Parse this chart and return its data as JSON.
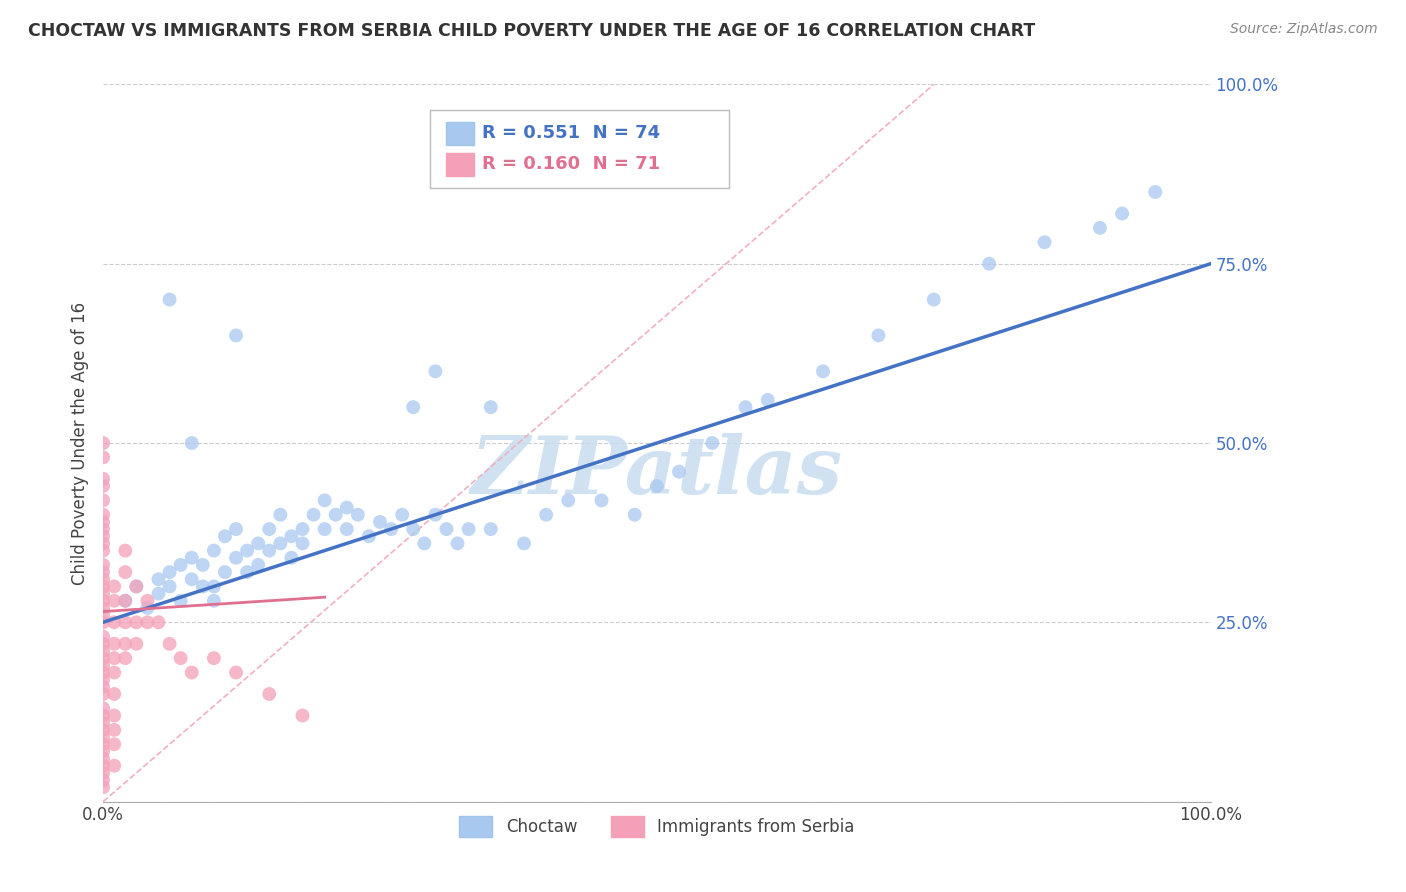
{
  "title": "CHOCTAW VS IMMIGRANTS FROM SERBIA CHILD POVERTY UNDER THE AGE OF 16 CORRELATION CHART",
  "source": "Source: ZipAtlas.com",
  "ylabel": "Child Poverty Under the Age of 16",
  "xlim": [
    0,
    1
  ],
  "ylim": [
    0,
    1
  ],
  "xticks": [
    0.0,
    0.25,
    0.5,
    0.75,
    1.0
  ],
  "xticklabels": [
    "0.0%",
    "",
    "",
    "",
    "100.0%"
  ],
  "yticks": [
    0.0,
    0.25,
    0.5,
    0.75,
    1.0
  ],
  "yticklabels": [
    "",
    "25.0%",
    "50.0%",
    "75.0%",
    "100.0%"
  ],
  "legend_labels": [
    "Choctaw",
    "Immigrants from Serbia"
  ],
  "blue_R": "0.551",
  "blue_N": "74",
  "pink_R": "0.160",
  "pink_N": "71",
  "blue_color": "#A8C8F0",
  "pink_color": "#F4A0B8",
  "blue_line_color": "#4472C4",
  "pink_line_color": "#E07090",
  "dash_line_color": "#F0B0C0",
  "watermark_color": "#C8DCF0",
  "blue_scatter_x": [
    0.02,
    0.03,
    0.04,
    0.05,
    0.05,
    0.06,
    0.06,
    0.07,
    0.07,
    0.08,
    0.08,
    0.09,
    0.09,
    0.1,
    0.1,
    0.1,
    0.11,
    0.11,
    0.12,
    0.12,
    0.13,
    0.13,
    0.14,
    0.14,
    0.15,
    0.15,
    0.16,
    0.16,
    0.17,
    0.17,
    0.18,
    0.18,
    0.19,
    0.2,
    0.2,
    0.21,
    0.22,
    0.22,
    0.23,
    0.24,
    0.25,
    0.26,
    0.27,
    0.28,
    0.29,
    0.3,
    0.31,
    0.32,
    0.33,
    0.35,
    0.38,
    0.4,
    0.42,
    0.45,
    0.48,
    0.5,
    0.52,
    0.55,
    0.58,
    0.6,
    0.65,
    0.7,
    0.75,
    0.8,
    0.85,
    0.9,
    0.92,
    0.95,
    0.28,
    0.3,
    0.35,
    0.12,
    0.08,
    0.06
  ],
  "blue_scatter_y": [
    0.28,
    0.3,
    0.27,
    0.29,
    0.31,
    0.3,
    0.32,
    0.28,
    0.33,
    0.31,
    0.34,
    0.3,
    0.33,
    0.28,
    0.3,
    0.35,
    0.32,
    0.37,
    0.34,
    0.38,
    0.32,
    0.35,
    0.36,
    0.33,
    0.35,
    0.38,
    0.36,
    0.4,
    0.37,
    0.34,
    0.36,
    0.38,
    0.4,
    0.38,
    0.42,
    0.4,
    0.41,
    0.38,
    0.4,
    0.37,
    0.39,
    0.38,
    0.4,
    0.38,
    0.36,
    0.4,
    0.38,
    0.36,
    0.38,
    0.38,
    0.36,
    0.4,
    0.42,
    0.42,
    0.4,
    0.44,
    0.46,
    0.5,
    0.55,
    0.56,
    0.6,
    0.65,
    0.7,
    0.75,
    0.78,
    0.8,
    0.82,
    0.85,
    0.55,
    0.6,
    0.55,
    0.65,
    0.5,
    0.7
  ],
  "pink_scatter_x": [
    0.0,
    0.0,
    0.0,
    0.0,
    0.0,
    0.0,
    0.0,
    0.0,
    0.0,
    0.0,
    0.0,
    0.0,
    0.0,
    0.0,
    0.0,
    0.0,
    0.0,
    0.0,
    0.0,
    0.0,
    0.0,
    0.0,
    0.0,
    0.0,
    0.0,
    0.0,
    0.0,
    0.0,
    0.0,
    0.0,
    0.0,
    0.0,
    0.0,
    0.0,
    0.0,
    0.0,
    0.0,
    0.0,
    0.0,
    0.0,
    0.01,
    0.01,
    0.01,
    0.01,
    0.01,
    0.01,
    0.01,
    0.01,
    0.01,
    0.01,
    0.02,
    0.02,
    0.02,
    0.02,
    0.02,
    0.03,
    0.03,
    0.03,
    0.04,
    0.04,
    0.05,
    0.06,
    0.07,
    0.08,
    0.1,
    0.12,
    0.15,
    0.18,
    0.0,
    0.01,
    0.02
  ],
  "pink_scatter_y": [
    0.3,
    0.28,
    0.32,
    0.25,
    0.22,
    0.2,
    0.18,
    0.15,
    0.12,
    0.1,
    0.08,
    0.05,
    0.03,
    0.35,
    0.38,
    0.4,
    0.42,
    0.45,
    0.48,
    0.5,
    0.02,
    0.04,
    0.06,
    0.07,
    0.09,
    0.11,
    0.13,
    0.16,
    0.17,
    0.19,
    0.21,
    0.23,
    0.26,
    0.27,
    0.29,
    0.31,
    0.33,
    0.36,
    0.37,
    0.39,
    0.3,
    0.28,
    0.25,
    0.22,
    0.2,
    0.18,
    0.15,
    0.12,
    0.1,
    0.08,
    0.32,
    0.28,
    0.25,
    0.22,
    0.2,
    0.3,
    0.25,
    0.22,
    0.28,
    0.25,
    0.25,
    0.22,
    0.2,
    0.18,
    0.2,
    0.18,
    0.15,
    0.12,
    0.44,
    0.05,
    0.35
  ]
}
